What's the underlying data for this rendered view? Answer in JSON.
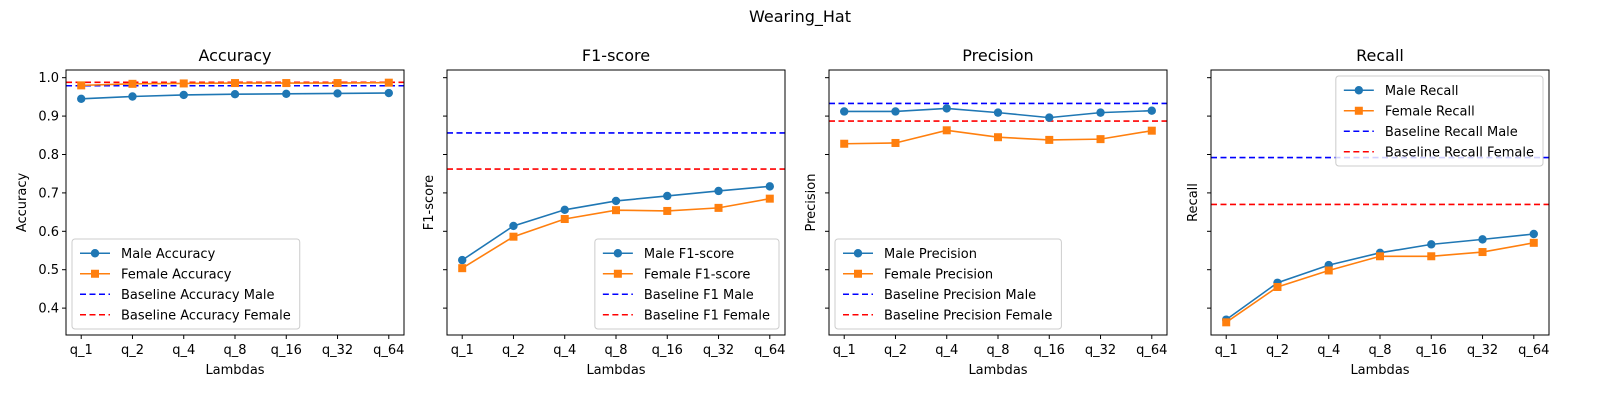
{
  "figure": {
    "suptitle": "Wearing_Hat"
  },
  "colors": {
    "male": "#1f77b4",
    "female": "#ff7f0e",
    "baseline_male": "#0000ff",
    "baseline_female": "#ff0000"
  },
  "chart_data": [
    {
      "type": "line",
      "title": "Accuracy",
      "xlabel": "Lambdas",
      "ylabel": "Accuracy",
      "categories": [
        "q_1",
        "q_2",
        "q_4",
        "q_8",
        "q_16",
        "q_32",
        "q_64"
      ],
      "ylim": [
        0.33,
        1.02
      ],
      "yticks": [
        0.4,
        0.5,
        0.6,
        0.7,
        0.8,
        0.9,
        1.0
      ],
      "ytick_labels": [
        "0.4",
        "0.5",
        "0.6",
        "0.7",
        "0.8",
        "0.9",
        "1.0"
      ],
      "show_ytick_labels": true,
      "legend_position": "lower-left",
      "series": [
        {
          "name": "Male Accuracy",
          "marker": "circle",
          "color": "#1f77b4",
          "values": [
            0.945,
            0.951,
            0.955,
            0.957,
            0.958,
            0.959,
            0.96
          ]
        },
        {
          "name": "Female Accuracy",
          "marker": "square",
          "color": "#ff7f0e",
          "values": [
            0.98,
            0.984,
            0.985,
            0.986,
            0.986,
            0.986,
            0.987
          ]
        }
      ],
      "baselines": [
        {
          "name": "Baseline Accuracy Male",
          "color": "#0000ff",
          "value": 0.979
        },
        {
          "name": "Baseline Accuracy Female",
          "color": "#ff0000",
          "value": 0.988
        }
      ]
    },
    {
      "type": "line",
      "title": "F1-score",
      "xlabel": "Lambdas",
      "ylabel": "F1-score",
      "categories": [
        "q_1",
        "q_2",
        "q_4",
        "q_8",
        "q_16",
        "q_32",
        "q_64"
      ],
      "ylim": [
        0.33,
        1.02
      ],
      "yticks": [
        0.4,
        0.5,
        0.6,
        0.7,
        0.8,
        0.9,
        1.0
      ],
      "show_ytick_labels": false,
      "legend_position": "lower-right",
      "series": [
        {
          "name": "Male F1-score",
          "marker": "circle",
          "color": "#1f77b4",
          "values": [
            0.525,
            0.614,
            0.656,
            0.679,
            0.692,
            0.705,
            0.717
          ]
        },
        {
          "name": "Female F1-score",
          "marker": "square",
          "color": "#ff7f0e",
          "values": [
            0.504,
            0.586,
            0.632,
            0.655,
            0.653,
            0.661,
            0.685
          ]
        }
      ],
      "baselines": [
        {
          "name": "Baseline F1 Male",
          "color": "#0000ff",
          "value": 0.856
        },
        {
          "name": "Baseline F1 Female",
          "color": "#ff0000",
          "value": 0.762
        }
      ]
    },
    {
      "type": "line",
      "title": "Precision",
      "xlabel": "Lambdas",
      "ylabel": "Precision",
      "categories": [
        "q_1",
        "q_2",
        "q_4",
        "q_8",
        "q_16",
        "q_32",
        "q_64"
      ],
      "ylim": [
        0.33,
        1.02
      ],
      "yticks": [
        0.4,
        0.5,
        0.6,
        0.7,
        0.8,
        0.9,
        1.0
      ],
      "show_ytick_labels": false,
      "legend_position": "lower-left",
      "series": [
        {
          "name": "Male Precision",
          "marker": "circle",
          "color": "#1f77b4",
          "values": [
            0.912,
            0.912,
            0.92,
            0.909,
            0.896,
            0.909,
            0.914
          ]
        },
        {
          "name": "Female Precision",
          "marker": "square",
          "color": "#ff7f0e",
          "values": [
            0.828,
            0.83,
            0.863,
            0.845,
            0.838,
            0.84,
            0.862
          ]
        }
      ],
      "baselines": [
        {
          "name": "Baseline Precision Male",
          "color": "#0000ff",
          "value": 0.933
        },
        {
          "name": "Baseline Precision Female",
          "color": "#ff0000",
          "value": 0.887
        }
      ]
    },
    {
      "type": "line",
      "title": "Recall",
      "xlabel": "Lambdas",
      "ylabel": "Recall",
      "categories": [
        "q_1",
        "q_2",
        "q_4",
        "q_8",
        "q_16",
        "q_32",
        "q_64"
      ],
      "ylim": [
        0.33,
        1.02
      ],
      "yticks": [
        0.4,
        0.5,
        0.6,
        0.7,
        0.8,
        0.9,
        1.0
      ],
      "show_ytick_labels": false,
      "legend_position": "upper-right",
      "series": [
        {
          "name": "Male Recall",
          "marker": "circle",
          "color": "#1f77b4",
          "values": [
            0.37,
            0.466,
            0.512,
            0.544,
            0.566,
            0.579,
            0.593
          ]
        },
        {
          "name": "Female Recall",
          "marker": "square",
          "color": "#ff7f0e",
          "values": [
            0.363,
            0.455,
            0.498,
            0.535,
            0.535,
            0.546,
            0.57
          ]
        }
      ],
      "baselines": [
        {
          "name": "Baseline Recall Male",
          "color": "#0000ff",
          "value": 0.792
        },
        {
          "name": "Baseline Recall Female",
          "color": "#ff0000",
          "value": 0.67
        }
      ]
    }
  ]
}
